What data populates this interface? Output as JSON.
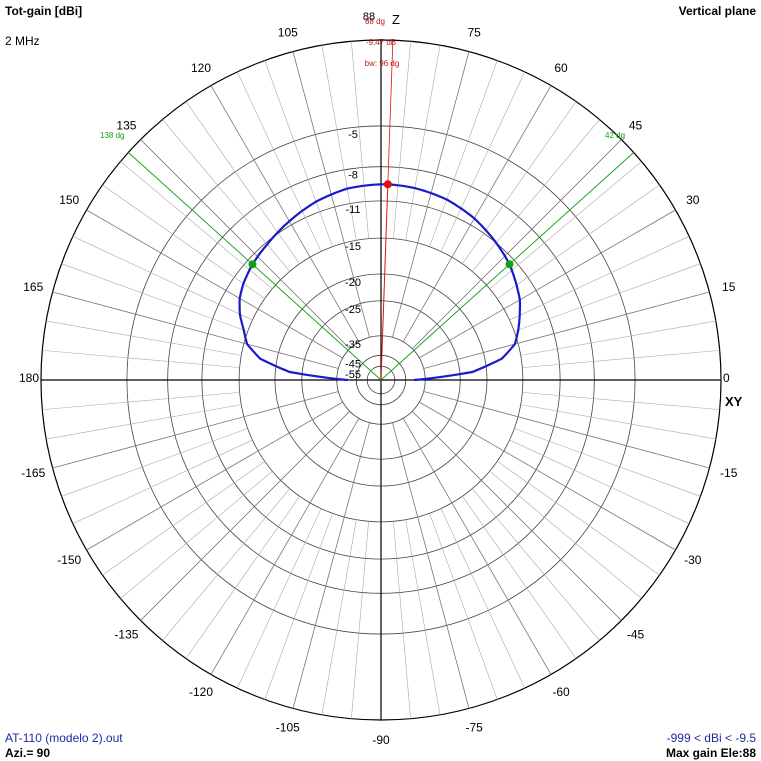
{
  "header": {
    "left_title": "Tot-gain [dBi]",
    "right_title": "Vertical plane",
    "frequency": "2 MHz"
  },
  "footer": {
    "file": "AT-110 (modelo 2).out",
    "azimuth": "Azi.= 90",
    "range": "-999 < dBi < -9.5",
    "max_gain": "Max gain Ele:88"
  },
  "axes": {
    "z_label": "Z",
    "xy_label": "XY"
  },
  "markers": {
    "max_angle_label": "88 dg",
    "max_gain_label": "-9.47 dB",
    "beamwidth_label": "bw: 96 dg",
    "left_half_power_label": "138 dg",
    "right_half_power_label": "42 dg"
  },
  "colors": {
    "pattern": "#1a1acc",
    "max_marker": "#e01010",
    "beamwidth": "#13a013",
    "grid": "#a8a8a8",
    "axes": "#000000"
  },
  "chart_data": {
    "type": "polar",
    "plane": "vertical",
    "angle_units": "degrees",
    "angle_labels": [
      "0",
      "15",
      "30",
      "45",
      "60",
      "75",
      "88",
      "105",
      "120",
      "135",
      "150",
      "165",
      "180",
      "-165",
      "-150",
      "-135",
      "-120",
      "-105",
      "-90",
      "-75",
      "-60",
      "-45",
      "-30",
      "-15"
    ],
    "radial_tick_labels": [
      "-5",
      "-8",
      "-11",
      "-15",
      "-20",
      "-25",
      "-35",
      "-45",
      "-55"
    ],
    "radial_ticks_db": [
      -5,
      -8,
      -11,
      -15,
      -20,
      -25,
      -35,
      -45,
      -55
    ],
    "series": [
      {
        "elevation_deg": [
          0,
          5,
          10,
          15,
          20,
          30,
          42,
          50,
          60,
          70,
          80,
          88,
          90,
          100,
          110,
          120,
          130,
          138,
          145,
          150,
          155,
          160,
          165,
          170,
          175,
          180
        ],
        "gain_dbi": [
          -40,
          -22.5,
          -17.5,
          -15.4,
          -14.5,
          -12.9,
          -11.6,
          -11.0,
          -10.3,
          -9.8,
          -9.55,
          -9.47,
          -9.48,
          -9.6,
          -10.0,
          -10.6,
          -11.2,
          -11.6,
          -12.1,
          -12.6,
          -13.4,
          -14.5,
          -15.4,
          -17.5,
          -22.5,
          -40
        ]
      }
    ],
    "max_gain": {
      "elevation_deg": 88,
      "gain_dbi": -9.47
    },
    "beamwidth_deg": 96,
    "half_power_angles_deg": [
      42,
      138
    ]
  }
}
